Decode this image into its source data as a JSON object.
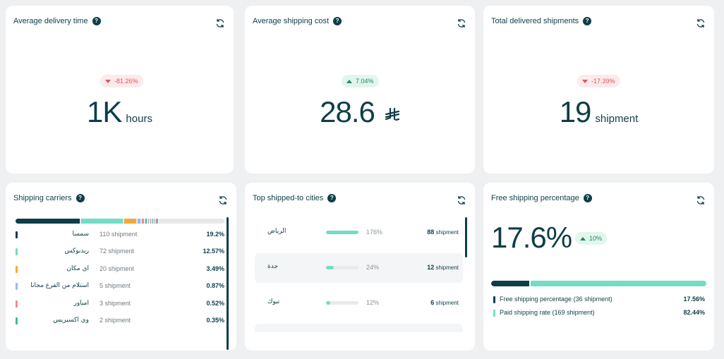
{
  "cards": {
    "avg_delivery": {
      "title": "Average delivery time",
      "change": "-81.26%",
      "value": "1K",
      "unit": "hours"
    },
    "avg_cost": {
      "title": "Average shipping cost",
      "change": "7.04%",
      "value": "28.6",
      "currency_icon": "saudi-riyal-icon"
    },
    "total_delivered": {
      "title": "Total delivered shipments",
      "change": "-17.39%",
      "value": "19",
      "unit": "shipment"
    }
  },
  "carriers": {
    "title": "Shipping carriers",
    "bar_colors": [
      "#0e3e48",
      "#71ddc4",
      "#f5a83a",
      "#8fbff0",
      "#ef8a8f",
      "#3fbd84"
    ],
    "items": [
      {
        "name": "سمسا",
        "count": "110 shipment",
        "pct": "19.2%",
        "color": "#0e3e48",
        "share": 19.2
      },
      {
        "name": "ريدبوكس",
        "count": "72 shipment",
        "pct": "12.57%",
        "color": "#71ddc4",
        "share": 12.57
      },
      {
        "name": "أي مكان",
        "count": "20 shipment",
        "pct": "3.49%",
        "color": "#f5a83a",
        "share": 3.49
      },
      {
        "name": "استلام من الفرع مجانا",
        "count": "5 shipment",
        "pct": "0.87%",
        "color": "#8fbff0",
        "share": 0.87
      },
      {
        "name": "امباور",
        "count": "3 shipment",
        "pct": "0.52%",
        "color": "#ef8a8f",
        "share": 0.52
      },
      {
        "name": "وي اكسبريس",
        "count": "2 shipment",
        "pct": "0.35%",
        "color": "#3fbd84",
        "share": 0.35
      }
    ]
  },
  "cities": {
    "title": "Top shipped-to cities",
    "items": [
      {
        "name": "الرياض",
        "pct": "176%",
        "fill": 1.0,
        "count": "88",
        "unit": "shipment"
      },
      {
        "name": "جدة",
        "pct": "24%",
        "fill": 0.24,
        "count": "12",
        "unit": "shipment"
      },
      {
        "name": "تبوك",
        "pct": "12%",
        "fill": 0.12,
        "count": "6",
        "unit": "shipment"
      }
    ]
  },
  "free_shipping": {
    "title": "Free shipping percentage",
    "value": "17.6%",
    "change": "10%",
    "free_share": 17.56,
    "paid_share": 82.44,
    "rows": [
      {
        "label": "Free shipping percentage (36 shipment)",
        "value": "17.56%",
        "color": "#0e3e48"
      },
      {
        "label": "Paid shipping rate (169 shipment)",
        "value": "82.44%",
        "color": "#71ddc4"
      }
    ]
  }
}
